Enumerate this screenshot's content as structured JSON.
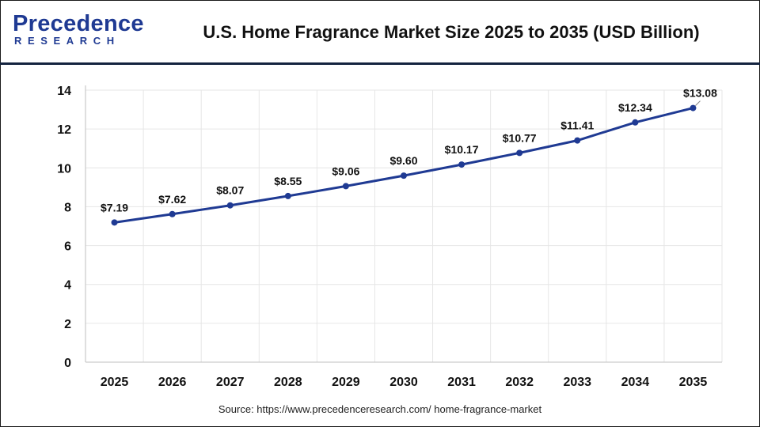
{
  "header": {
    "logo_top": "Precedence",
    "logo_bottom": "RESEARCH",
    "title": "U.S. Home Fragrance Market Size 2025 to 2035 (USD Billion)"
  },
  "footer": {
    "source": "Source: https://www.precedenceresearch.com/ home-fragrance-market"
  },
  "colors": {
    "brand": "#1f3a93",
    "line": "#1f3a93",
    "marker": "#1f3a93",
    "grid": "#e6e6e6",
    "header_rule": "#14233f"
  },
  "chart_data": {
    "type": "line",
    "title": "U.S. Home Fragrance Market Size 2025 to 2035 (USD Billion)",
    "xlabel": "",
    "ylabel": "",
    "categories": [
      "2025",
      "2026",
      "2027",
      "2028",
      "2029",
      "2030",
      "2031",
      "2032",
      "2033",
      "2034",
      "2035"
    ],
    "series": [
      {
        "values": [
          7.19,
          7.62,
          8.07,
          8.55,
          9.06,
          9.6,
          10.17,
          10.77,
          11.41,
          12.34,
          13.08
        ],
        "labels": [
          "$7.19",
          "$7.62",
          "$8.07",
          "$8.55",
          "$9.06",
          "$9.60",
          "$10.17",
          "$10.77",
          "$11.41",
          "$12.34",
          "$13.08"
        ]
      }
    ],
    "ylim": [
      0,
      14
    ],
    "yticks": [
      "0",
      "2",
      "4",
      "6",
      "8",
      "10",
      "12",
      "14"
    ],
    "grid": true,
    "legend": "none"
  }
}
